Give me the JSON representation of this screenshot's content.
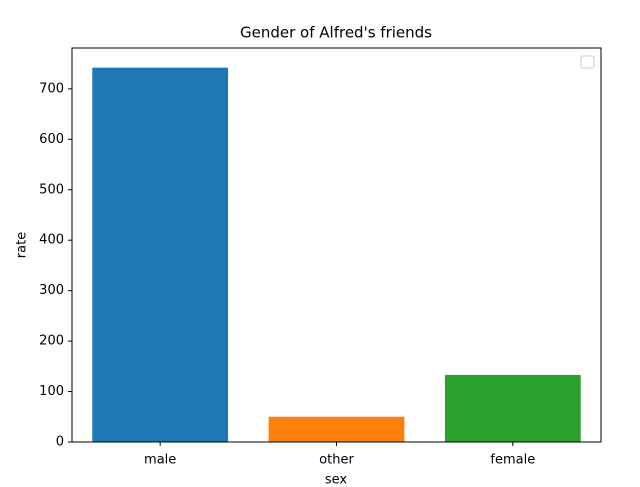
{
  "chart_data": {
    "type": "bar",
    "title": "Gender of Alfred's friends",
    "x_label": "sex",
    "y_label": "rate",
    "categories": [
      "male",
      "other",
      "female"
    ],
    "values": [
      742,
      50,
      133
    ],
    "colors": [
      "#1f77b4",
      "#ff7f0e",
      "#2ca02c"
    ],
    "ylim": [
      0,
      781
    ],
    "yticks": [
      0,
      100,
      200,
      300,
      400,
      500,
      600,
      700
    ],
    "grid": false
  }
}
